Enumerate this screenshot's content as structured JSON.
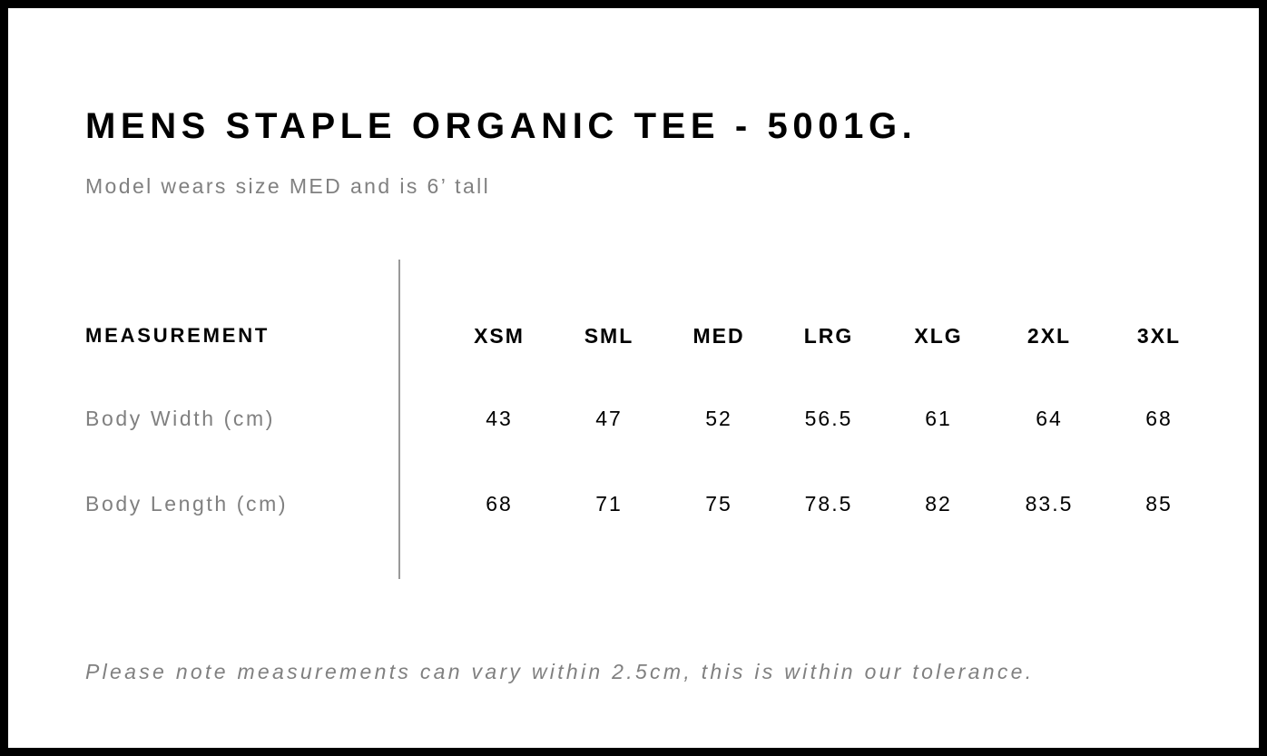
{
  "title": "MENS STAPLE ORGANIC TEE - 5001G.",
  "subtitle": "Model wears size MED and is 6’ tall",
  "table": {
    "header": "MEASUREMENT",
    "sizes": [
      "XSM",
      "SML",
      "MED",
      "LRG",
      "XLG",
      "2XL",
      "3XL"
    ],
    "rows": [
      {
        "label": "Body Width (cm)",
        "values": [
          "43",
          "47",
          "52",
          "56.5",
          "61",
          "64",
          "68"
        ]
      },
      {
        "label": "Body Length (cm)",
        "values": [
          "68",
          "71",
          "75",
          "78.5",
          "82",
          "83.5",
          "85"
        ]
      }
    ]
  },
  "note": "Please note measurements can vary within 2.5cm, this is within our tolerance."
}
